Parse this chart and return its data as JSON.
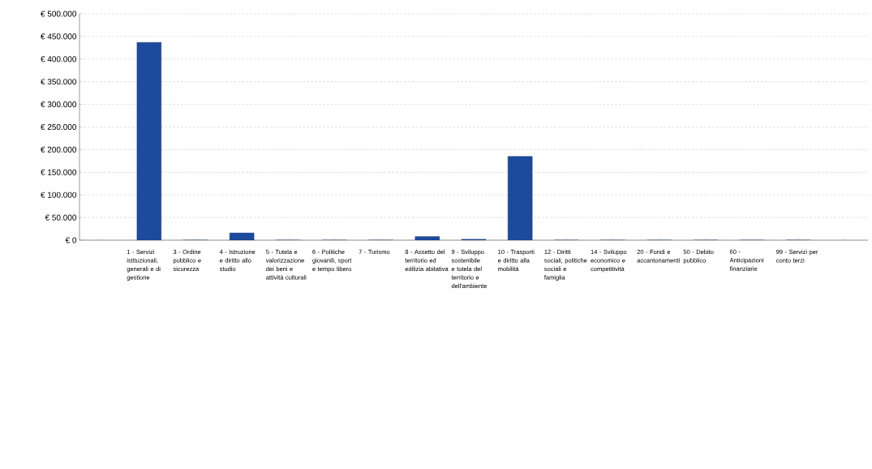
{
  "chart_data": {
    "type": "bar",
    "categories": [
      null,
      "1 - Servizi istituzionali, generali e di gestione",
      "3 - Ordine pubblico e sicurezza",
      "4 - Istruzione e diritto allo studio",
      "5 - Tutela e valorizzazione dei beni e attività culturali",
      "6 - Politiche giovanili, sport e tempo libero",
      "7 - Turismo",
      "8 - Assetto del territorio ed edilizia abitativa",
      "9 - Sviluppo sostenibile e tutela del territorio e dell'ambiente",
      "10 - Trasporti e diritto alla mobilità",
      "12 - Diritti sociali, politiche sociali e famiglia",
      "14 - Sviluppo economico e competitività",
      "20 - Fondi e accantonamenti",
      "50 - Debito pubblico",
      "60 - Anticipazioni finanziarie",
      "99 - Servizi per conto terzi",
      null
    ],
    "values": [
      null,
      437000,
      0,
      16000,
      0,
      0,
      0,
      8000,
      2000,
      185000,
      0,
      0,
      0,
      0,
      0,
      0,
      null
    ],
    "color": "#1c4a9c",
    "ylim": [
      0,
      500000
    ],
    "yticks": [
      {
        "value": 0,
        "label": "€ 0"
      },
      {
        "value": 50000,
        "label": "€ 50.000"
      },
      {
        "value": 100000,
        "label": "€ 100.000"
      },
      {
        "value": 150000,
        "label": "€ 150.000"
      },
      {
        "value": 200000,
        "label": "€ 200.000"
      },
      {
        "value": 250000,
        "label": "€ 250.000"
      },
      {
        "value": 300000,
        "label": "€ 300.000"
      },
      {
        "value": 350000,
        "label": "€ 350.000"
      },
      {
        "value": 400000,
        "label": "€ 400.000"
      },
      {
        "value": 450000,
        "label": "€ 450.000"
      },
      {
        "value": 500000,
        "label": "€ 500.000"
      }
    ],
    "grid": "y"
  }
}
